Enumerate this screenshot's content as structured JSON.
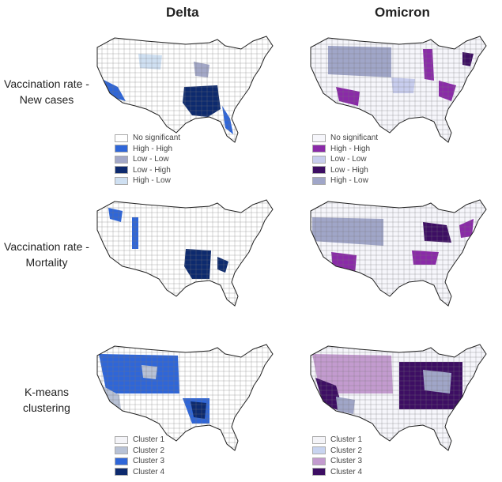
{
  "columns": [
    "Delta",
    "Omicron"
  ],
  "rows": [
    {
      "label": "Vaccination rate - New cases"
    },
    {
      "label": "Vaccination rate - Mortality"
    },
    {
      "label": "K-means clustering"
    }
  ],
  "legend_lisa": {
    "delta": [
      {
        "label": "No significant",
        "color": "#ffffff"
      },
      {
        "label": "High - High",
        "color": "#2f66d8"
      },
      {
        "label": "Low - Low",
        "color": "#a3a8c8"
      },
      {
        "label": "Low - High",
        "color": "#0d2a6e"
      },
      {
        "label": "High - Low",
        "color": "#cfe0f2"
      }
    ],
    "omicron": [
      {
        "label": "No significant",
        "color": "#f6f6fb"
      },
      {
        "label": "High - High",
        "color": "#8a2aa8"
      },
      {
        "label": "Low - Low",
        "color": "#c8cdee"
      },
      {
        "label": "Low - High",
        "color": "#3d0e63"
      },
      {
        "label": "High - Low",
        "color": "#a0a6c8"
      }
    ]
  },
  "legend_cluster": {
    "delta": [
      {
        "label": "Cluster 1",
        "color": "#f4f4f8"
      },
      {
        "label": "Cluster 2",
        "color": "#b8c2d6"
      },
      {
        "label": "Cluster 3",
        "color": "#2f66d8"
      },
      {
        "label": "Cluster 4",
        "color": "#0d2a6e"
      }
    ],
    "omicron": [
      {
        "label": "Cluster 1",
        "color": "#f4f4f8"
      },
      {
        "label": "Cluster 2",
        "color": "#c8d4f0"
      },
      {
        "label": "Cluster 3",
        "color": "#c39bcf"
      },
      {
        "label": "Cluster 4",
        "color": "#3d0e63"
      }
    ]
  }
}
